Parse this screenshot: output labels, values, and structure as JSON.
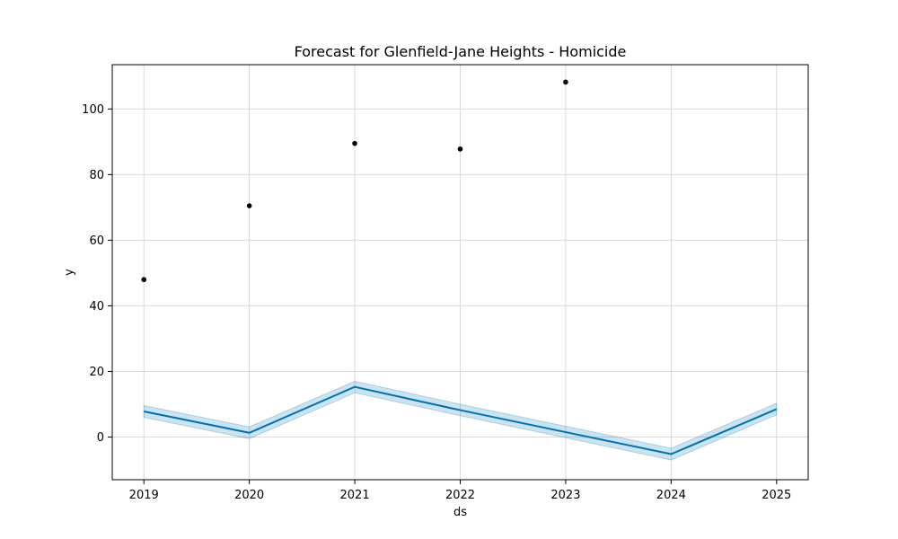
{
  "chart_data": {
    "type": "line",
    "title": "Forecast for Glenfield-Jane Heights - Homicide",
    "xlabel": "ds",
    "ylabel": "y",
    "x_ticks": [
      "2019",
      "2020",
      "2021",
      "2022",
      "2023",
      "2024",
      "2025"
    ],
    "y_ticks": [
      0,
      20,
      40,
      60,
      80,
      100
    ],
    "xlim": [
      2018.7,
      2025.3
    ],
    "ylim": [
      -13,
      113.5
    ],
    "grid": true,
    "observed": {
      "x": [
        2019,
        2020,
        2021,
        2022,
        2023
      ],
      "y": [
        48,
        70.5,
        89.5,
        87.8,
        108.2
      ]
    },
    "forecast": {
      "x": [
        2019,
        2020,
        2021,
        2022,
        2023,
        2024,
        2025
      ],
      "yhat": [
        7.8,
        1.3,
        15.3,
        8.2,
        1.5,
        -5.2,
        8.5
      ],
      "yhat_lower": [
        6.0,
        -0.5,
        13.5,
        6.5,
        -0.2,
        -7.0,
        6.8
      ],
      "yhat_upper": [
        9.6,
        3.1,
        17.0,
        10.0,
        3.3,
        -3.4,
        10.3
      ]
    },
    "colors": {
      "forecast_line": "#0072b2",
      "interval_fill": "#0072b2",
      "observed_points": "#000000"
    }
  }
}
